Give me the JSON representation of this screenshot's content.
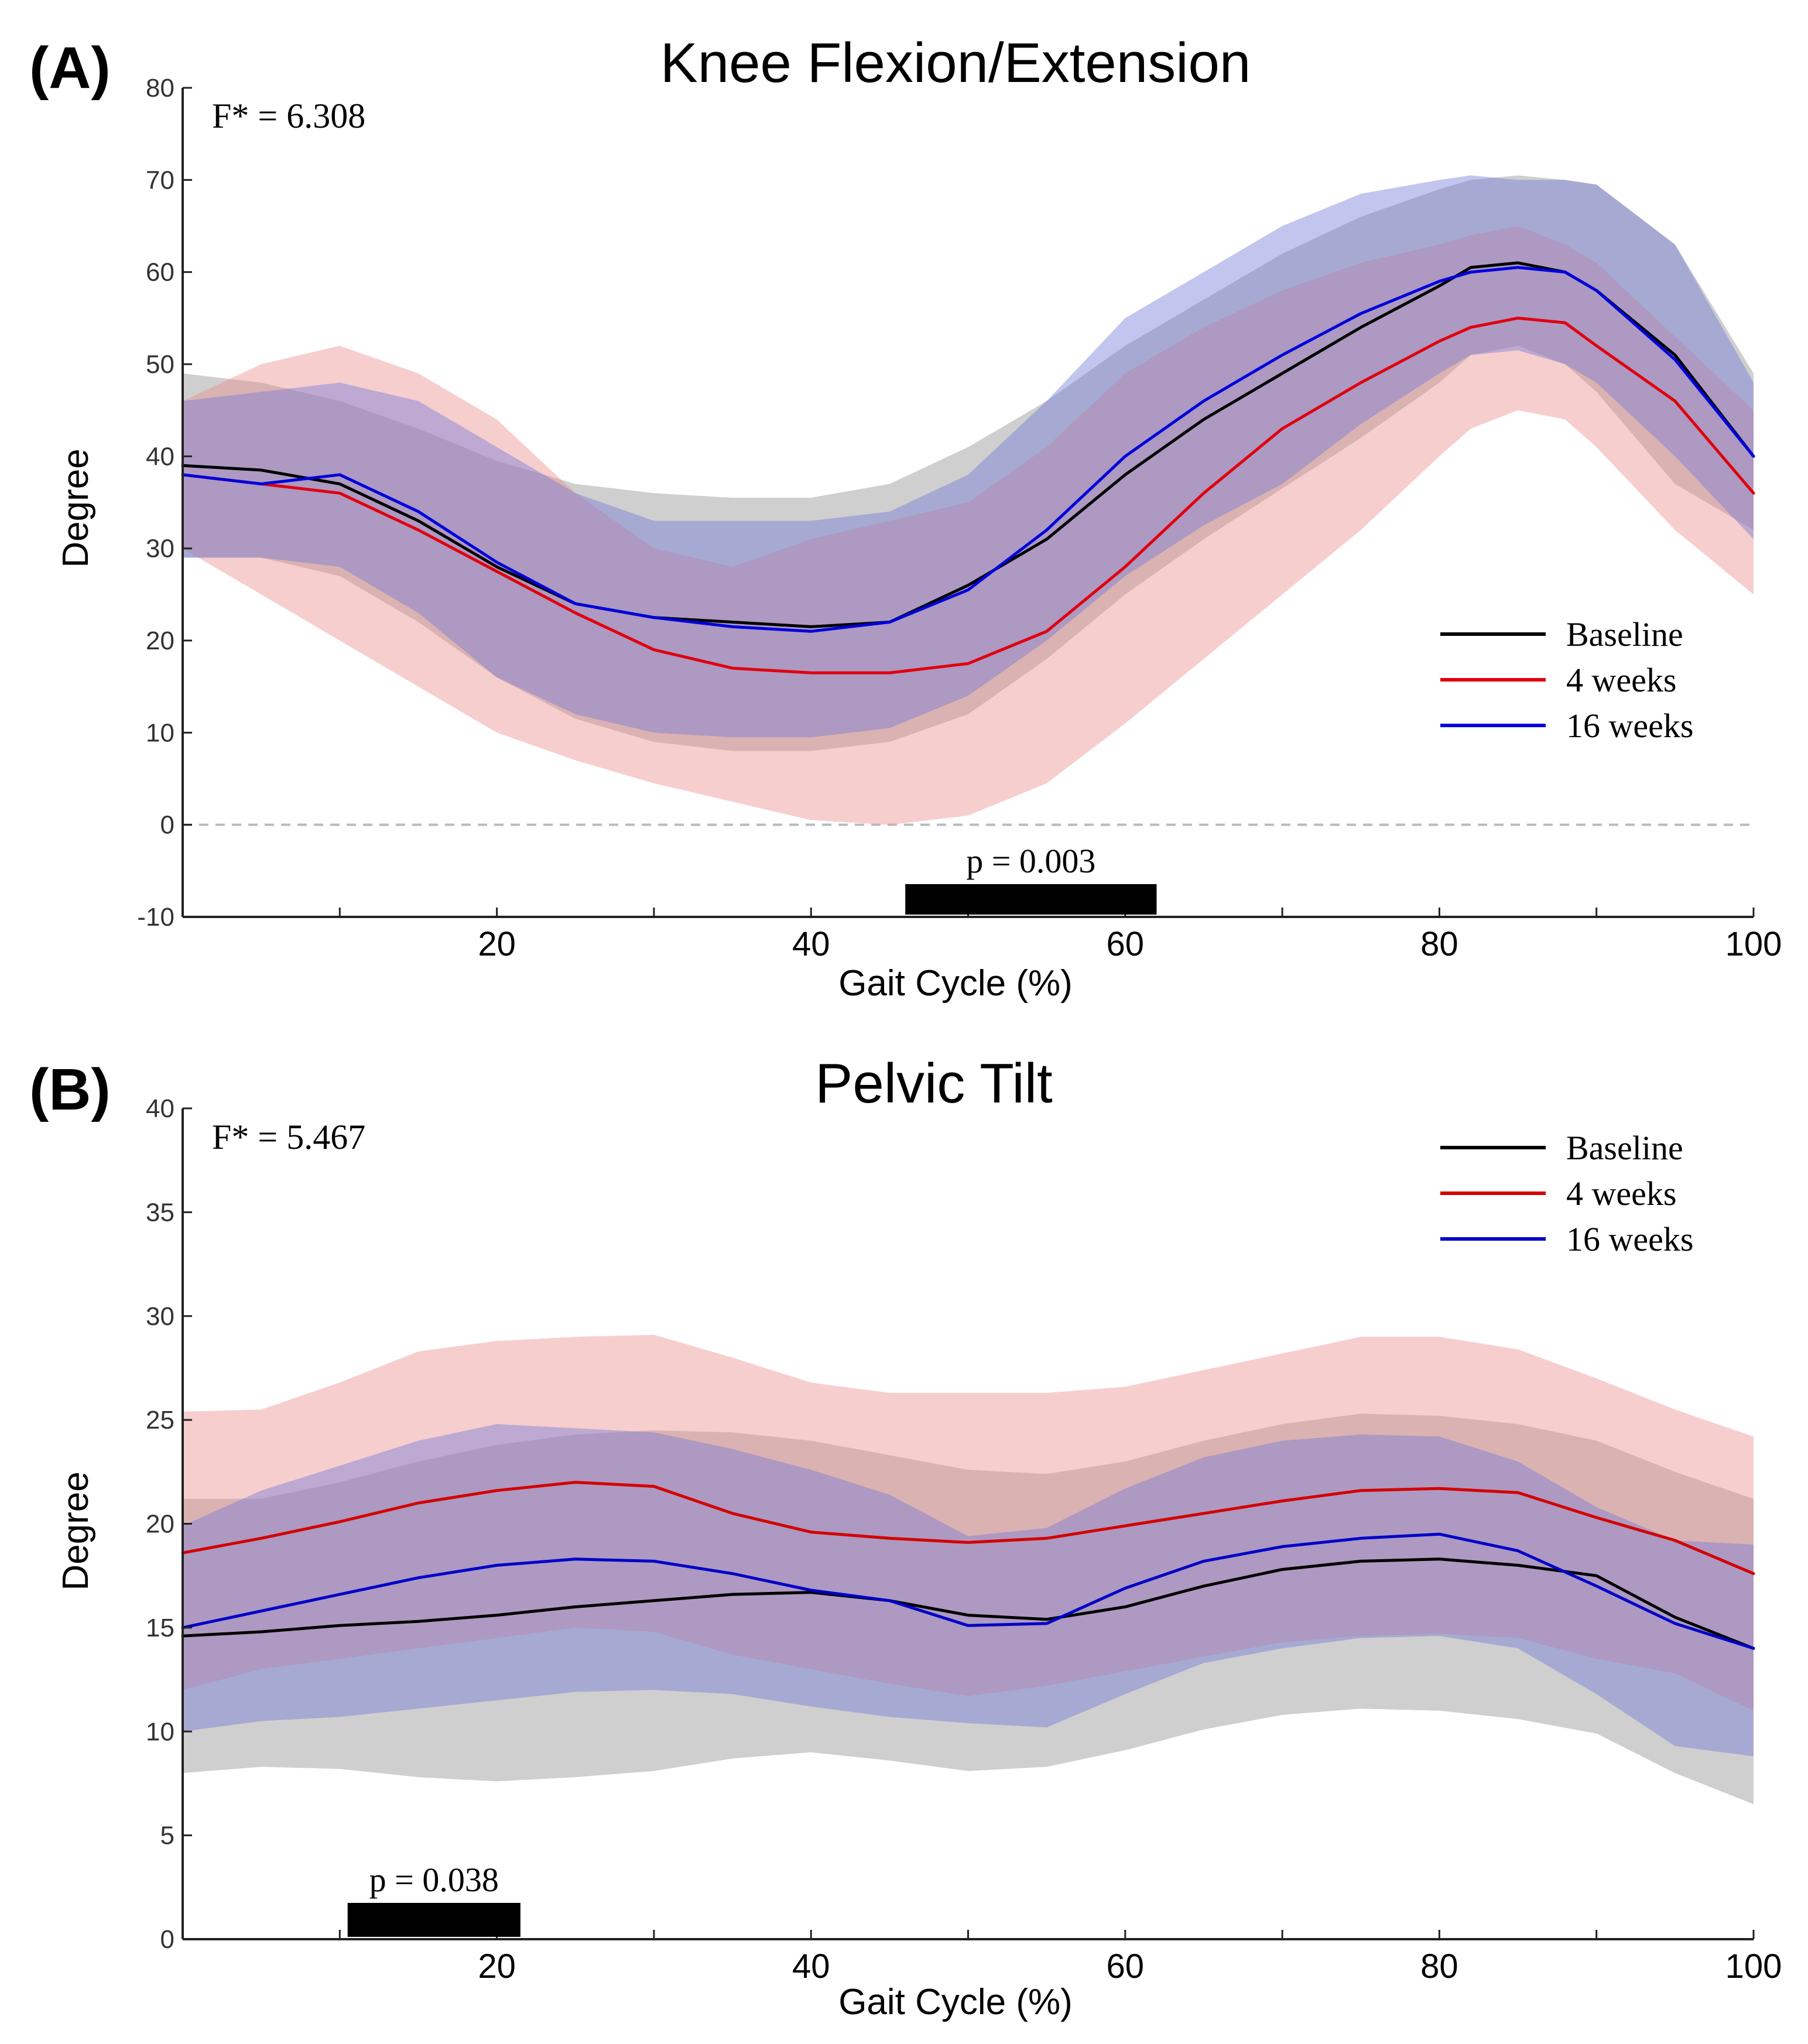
{
  "chart_data": [
    {
      "panel_label": "(A)",
      "type": "line",
      "title": "Knee Flexion/Extension",
      "xlabel": "Gait Cycle (%)",
      "ylabel": "Degree",
      "xlim": [
        0,
        100
      ],
      "ylim": [
        -10,
        80
      ],
      "xticks": [
        20,
        40,
        60,
        80,
        100
      ],
      "yticks": [
        -10,
        0,
        10,
        20,
        30,
        40,
        50,
        60,
        70,
        80
      ],
      "zero_line": true,
      "annotation": "F* = 6.308",
      "significance": {
        "x_start": 46,
        "x_end": 62,
        "label": "p = 0.003"
      },
      "legend_position": "lower-right",
      "x": [
        0,
        5,
        10,
        15,
        20,
        25,
        30,
        35,
        40,
        45,
        50,
        55,
        60,
        65,
        70,
        75,
        80,
        82,
        85,
        88,
        90,
        95,
        100
      ],
      "series": [
        {
          "name": "Baseline",
          "color": "#000000",
          "band_color": "#8c8c8c",
          "mean": [
            39,
            38.5,
            37,
            33,
            28,
            24,
            22.5,
            22,
            21.5,
            22,
            26,
            31,
            38,
            44,
            49,
            54,
            58.5,
            60.5,
            61,
            60,
            58,
            51,
            40
          ],
          "upper": [
            49,
            48,
            46,
            43,
            39.5,
            37,
            36,
            35.5,
            35.5,
            37,
            41,
            46,
            52,
            57,
            62,
            66,
            69,
            70,
            70.5,
            70,
            69.5,
            63,
            49
          ],
          "lower": [
            29,
            29,
            27,
            22,
            16,
            11.5,
            9,
            8,
            8,
            9,
            12,
            18,
            25,
            31,
            36.5,
            42,
            48,
            51,
            52,
            50,
            47,
            37,
            32
          ]
        },
        {
          "name": "4 weeks",
          "color": "#e0000e",
          "band_color": "#ed8a8a",
          "mean": [
            38,
            37,
            36,
            32,
            27.5,
            23,
            19,
            17,
            16.5,
            16.5,
            17.5,
            21,
            28,
            36,
            43,
            48,
            52.5,
            54,
            55,
            54.5,
            52,
            46,
            36
          ],
          "upper": [
            46,
            50,
            52,
            49,
            44,
            36,
            30,
            28,
            31,
            33,
            35,
            41,
            49,
            54,
            58,
            61,
            63,
            64,
            65,
            63,
            61,
            53,
            45
          ],
          "lower": [
            30,
            25,
            20,
            15,
            10,
            7,
            4.5,
            2.5,
            0.5,
            0,
            1,
            4.5,
            11,
            18,
            25,
            32,
            40,
            43,
            45,
            44,
            41,
            32,
            25
          ]
        },
        {
          "name": "16 weeks",
          "color": "#0000dc",
          "band_color": "#6e76d6",
          "mean": [
            38,
            37,
            38,
            34,
            28.5,
            24,
            22.5,
            21.5,
            21,
            22,
            25.5,
            32,
            40,
            46,
            51,
            55.5,
            59,
            60,
            60.5,
            60,
            58,
            50.5,
            40
          ],
          "upper": [
            46,
            47,
            48,
            46,
            41,
            36,
            33,
            33,
            33,
            34,
            38,
            46,
            55,
            60,
            65,
            68.5,
            70,
            70.5,
            70,
            70,
            69.5,
            63,
            48
          ],
          "lower": [
            29,
            29,
            28,
            23,
            16,
            12,
            10,
            9.5,
            9.5,
            10.5,
            14,
            20,
            27,
            32.5,
            37,
            43.5,
            49,
            51,
            51.5,
            50,
            48,
            40,
            31
          ]
        }
      ]
    },
    {
      "panel_label": "(B)",
      "type": "line",
      "title": "Pelvic Tilt",
      "xlabel": "Gait Cycle (%)",
      "ylabel": "Degree",
      "xlim": [
        0,
        100
      ],
      "ylim": [
        0,
        40
      ],
      "xticks": [
        20,
        40,
        60,
        80,
        100
      ],
      "yticks": [
        0,
        5,
        10,
        15,
        20,
        25,
        30,
        35,
        40
      ],
      "zero_line": false,
      "annotation": "F* = 5.467",
      "significance": {
        "x_start": 10.5,
        "x_end": 21.5,
        "label": "p = 0.038"
      },
      "legend_position": "top-right",
      "x": [
        0,
        5,
        10,
        15,
        20,
        25,
        30,
        35,
        40,
        45,
        50,
        55,
        60,
        65,
        70,
        75,
        80,
        85,
        90,
        95,
        100
      ],
      "series": [
        {
          "name": "Baseline",
          "color": "#000000",
          "band_color": "#8c8c8c",
          "mean": [
            14.6,
            14.8,
            15.1,
            15.3,
            15.6,
            16,
            16.3,
            16.6,
            16.7,
            16.3,
            15.6,
            15.4,
            16,
            17,
            17.8,
            18.2,
            18.3,
            18,
            17.5,
            15.5,
            14
          ],
          "upper": [
            21.2,
            21.2,
            22,
            23,
            23.8,
            24.3,
            24.5,
            24.4,
            24,
            23.3,
            22.6,
            22.4,
            23,
            24,
            24.8,
            25.3,
            25.2,
            24.8,
            24,
            22.5,
            21.2
          ],
          "lower": [
            8,
            8.3,
            8.2,
            7.8,
            7.6,
            7.8,
            8.1,
            8.7,
            9,
            8.6,
            8.1,
            8.3,
            9.1,
            10.1,
            10.8,
            11.1,
            11,
            10.6,
            9.9,
            8,
            6.5
          ]
        },
        {
          "name": "4 weeks",
          "color": "#d40000",
          "band_color": "#ed8a8a",
          "mean": [
            18.6,
            19.3,
            20.1,
            21,
            21.6,
            22,
            21.8,
            20.5,
            19.6,
            19.3,
            19.1,
            19.3,
            19.9,
            20.5,
            21.1,
            21.6,
            21.7,
            21.5,
            20.3,
            19.2,
            17.6
          ],
          "upper": [
            25.4,
            25.5,
            26.8,
            28.3,
            28.8,
            29,
            29.1,
            28,
            26.8,
            26.3,
            26.3,
            26.3,
            26.6,
            27.4,
            28.2,
            29,
            29,
            28.4,
            27,
            25.5,
            24.2
          ],
          "lower": [
            12,
            13,
            13.5,
            14,
            14.5,
            15,
            14.8,
            13.7,
            13,
            12.3,
            11.7,
            12.2,
            12.9,
            13.6,
            14.3,
            14.6,
            14.7,
            14.5,
            13.5,
            12.8,
            11
          ]
        },
        {
          "name": "16 weeks",
          "color": "#0000c8",
          "band_color": "#6e76d6",
          "mean": [
            15,
            15.8,
            16.6,
            17.4,
            18,
            18.3,
            18.2,
            17.6,
            16.8,
            16.3,
            15.1,
            15.2,
            16.9,
            18.2,
            18.9,
            19.3,
            19.5,
            18.7,
            17,
            15.2,
            14
          ],
          "upper": [
            19.9,
            21.6,
            22.8,
            24,
            24.8,
            24.6,
            24.4,
            23.6,
            22.6,
            21.4,
            19.4,
            19.8,
            21.7,
            23.2,
            24,
            24.3,
            24.2,
            23,
            20.8,
            19.2,
            19
          ],
          "lower": [
            10,
            10.5,
            10.7,
            11.1,
            11.5,
            11.9,
            12,
            11.8,
            11.2,
            10.7,
            10.4,
            10.2,
            11.8,
            13.3,
            14,
            14.5,
            14.6,
            14,
            11.8,
            9.3,
            8.8
          ]
        }
      ]
    }
  ]
}
